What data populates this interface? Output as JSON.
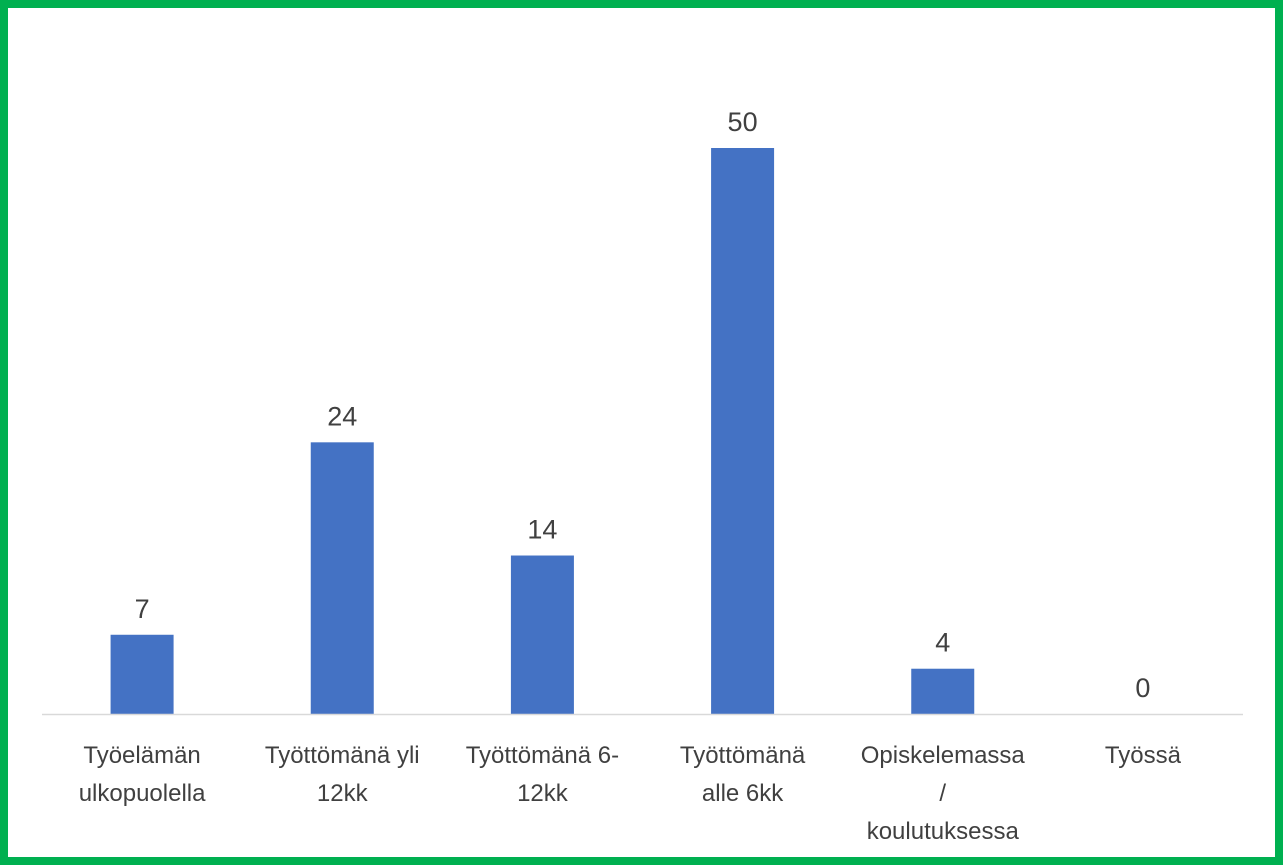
{
  "chart_data": {
    "type": "bar",
    "title": "",
    "xlabel": "",
    "ylabel": "",
    "categories": [
      [
        "Työelämän",
        "ulkopuolella"
      ],
      [
        "Työttömänä yli",
        "12kk"
      ],
      [
        "Työttömänä 6-",
        "12kk"
      ],
      [
        "Työttömänä",
        "alle 6kk"
      ],
      [
        "Opiskelemassa",
        "/",
        "koulutuksessa"
      ],
      [
        "Työssä"
      ]
    ],
    "values": [
      7,
      24,
      14,
      50,
      4,
      0
    ],
    "ylim": [
      0,
      50
    ],
    "data_labels": true,
    "gridlines": false,
    "legend": "none",
    "colors": {
      "bar": "#4472c4",
      "border": "#00b050",
      "axis": "#d9d9d9",
      "text": "#404040"
    }
  }
}
